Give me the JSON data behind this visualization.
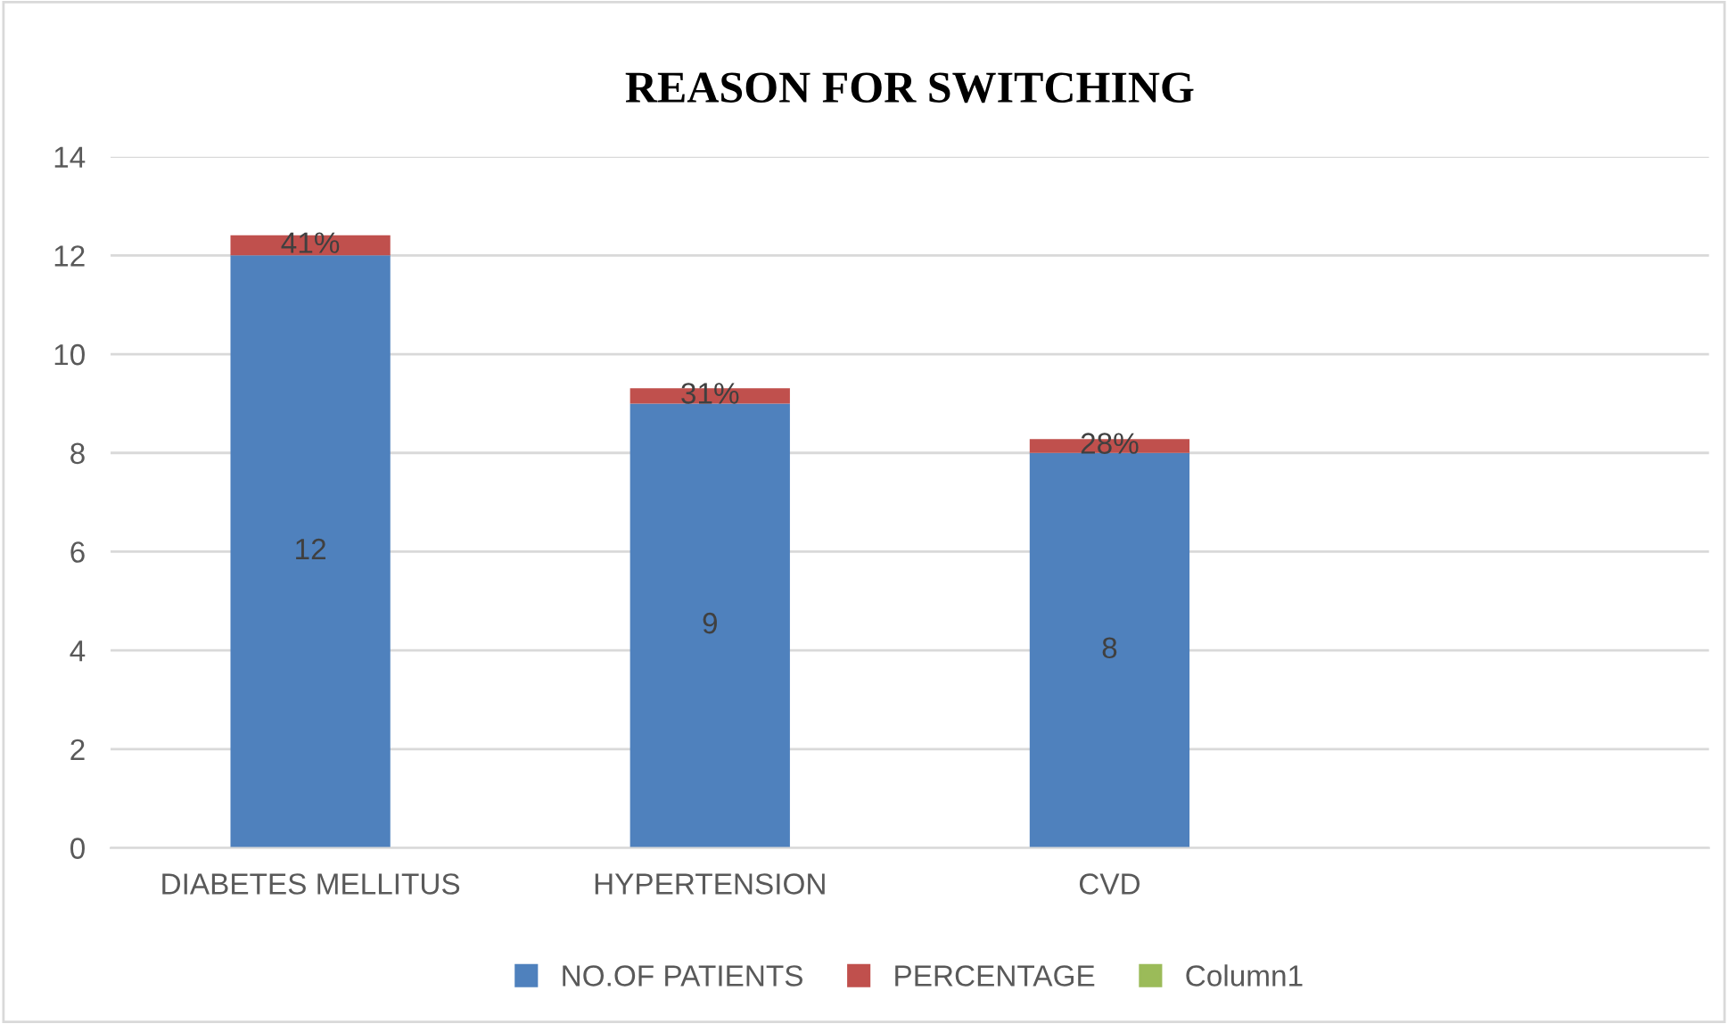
{
  "chart_data": {
    "type": "bar",
    "title": "REASON FOR SWITCHING",
    "stacked": true,
    "categories": [
      "DIABETES MELLITUS",
      "HYPERTENSION",
      "CVD",
      null
    ],
    "series": [
      {
        "name": "NO.OF PATIENTS",
        "color": "#4f81bd",
        "values": [
          12,
          9,
          8,
          null
        ],
        "value_labels": [
          "12",
          "9",
          "8",
          null
        ]
      },
      {
        "name": "PERCENTAGE",
        "color": "#c0504d",
        "values": [
          0.41,
          0.31,
          0.28,
          null
        ],
        "value_labels": [
          "41%",
          "31%",
          "28%",
          null
        ]
      },
      {
        "name": "Column1",
        "color": "#9bbb59",
        "values": [
          null,
          null,
          null,
          null
        ]
      }
    ],
    "ylim": [
      0,
      14
    ],
    "yticks": [
      0,
      2,
      4,
      6,
      8,
      10,
      12,
      14
    ],
    "grid": "y",
    "legend": "bottom"
  }
}
